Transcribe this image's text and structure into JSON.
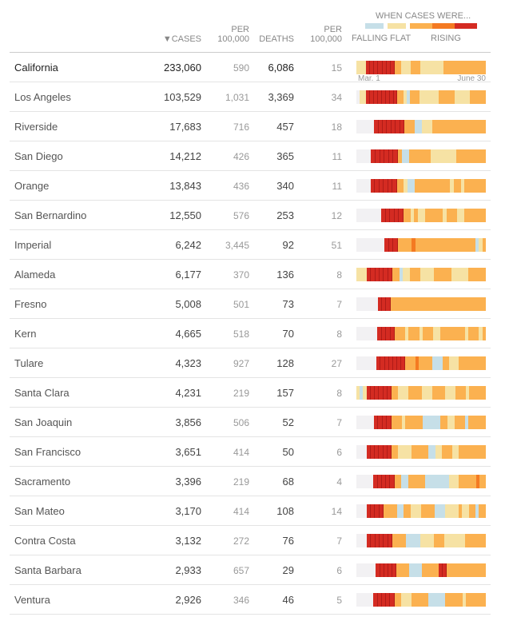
{
  "header": {
    "cases": "▼CASES",
    "per1": "PER",
    "per1b": "100,000",
    "deaths": "DEATHS",
    "per2": "PER",
    "per2b": "100,000",
    "legend_title": "WHEN CASES WERE...",
    "falling": "FALLING",
    "flat": "FLAT",
    "rising": "RISING"
  },
  "axis": {
    "start": "Mar. 1",
    "end": "June 30"
  },
  "colors": {
    "g": "#f2f1f3",
    "b": "#c6dfe8",
    "y": "#f6e2a4",
    "o": "#fbb150",
    "d": "#f47a22",
    "r": "#d42b22"
  },
  "rows": [
    {
      "name": "California",
      "cases": "233,060",
      "per_cases": "590",
      "deaths": "6,086",
      "per_deaths": "15",
      "trend": "yyyrrrrrrrooyyyoooyyyyyyyooooooooooooo"
    },
    {
      "name": "Los Angeles",
      "cases": "103,529",
      "per_cases": "1,031",
      "deaths": "3,369",
      "per_deaths": "34",
      "trend": "gyyrrrrrrrrooyboooyyyyyyoooooyyyyyooooo"
    },
    {
      "name": "Riverside",
      "cases": "17,683",
      "per_cases": "716",
      "deaths": "457",
      "per_deaths": "18",
      "trend": "gggggrrrrrrrooobbyyyooooooooooooooo"
    },
    {
      "name": "San Diego",
      "cases": "14,212",
      "per_cases": "426",
      "deaths": "365",
      "per_deaths": "11",
      "trend": "ggggrrrrrrobbooooooyyyyyyyoooooooo"
    },
    {
      "name": "Orange",
      "cases": "13,843",
      "per_cases": "436",
      "deaths": "340",
      "per_deaths": "11",
      "trend": "ggggrrrrrrooybbooooooooooyooyoooooo"
    },
    {
      "name": "San Bernardino",
      "cases": "12,550",
      "per_cases": "576",
      "deaths": "253",
      "per_deaths": "12",
      "trend": "gggggggrrrrrooyoyyoooooyoooyyoooooo"
    },
    {
      "name": "Imperial",
      "cases": "6,242",
      "per_cases": "3,445",
      "deaths": "92",
      "per_deaths": "51",
      "trend": "ggggggggrrroooodooooooooooooooooobyo"
    },
    {
      "name": "Alameda",
      "cases": "6,177",
      "per_cases": "370",
      "deaths": "136",
      "per_deaths": "8",
      "trend": "yyyrrrrrroobyyoooyyyyoooooyyyyyooooo"
    },
    {
      "name": "Fresno",
      "cases": "5,008",
      "per_cases": "501",
      "deaths": "73",
      "per_deaths": "7",
      "trend": "ggggggrrrooooooooooooooooooooooooooo"
    },
    {
      "name": "Kern",
      "cases": "4,665",
      "per_cases": "518",
      "deaths": "70",
      "per_deaths": "8",
      "trend": "ggggggrrrroooyoooyoooyyoooooooyoooyo"
    },
    {
      "name": "Tulare",
      "cases": "4,323",
      "per_cases": "927",
      "deaths": "128",
      "per_deaths": "27",
      "trend": "ggggggrrrrrrrooodoooobbbooyyyoooooooo"
    },
    {
      "name": "Santa Clara",
      "cases": "4,231",
      "per_cases": "219",
      "deaths": "157",
      "per_deaths": "8",
      "trend": "ybyrrrrrrooyyyooooyyyooooyyyoooyooooo"
    },
    {
      "name": "San Joaquin",
      "cases": "3,856",
      "per_cases": "506",
      "deaths": "52",
      "per_deaths": "7",
      "trend": "gggggrrrroooyooooobbbbbooyyooobooooo"
    },
    {
      "name": "San Francisco",
      "cases": "3,651",
      "per_cases": "414",
      "deaths": "50",
      "per_deaths": "6",
      "trend": "gggrrrrrrooyyyyooooobbyyoooyyoooooooo"
    },
    {
      "name": "Sacramento",
      "cases": "3,396",
      "per_cases": "219",
      "deaths": "68",
      "per_deaths": "4",
      "trend": "gggggrrrrroobbooooobbbbbbbyyyooooodoo"
    },
    {
      "name": "San Mateo",
      "cases": "3,170",
      "per_cases": "414",
      "deaths": "108",
      "per_deaths": "14",
      "trend": "gggrrrroooobbooyyyoooobbbyyyyoyyooboo"
    },
    {
      "name": "Contra Costa",
      "cases": "3,132",
      "per_cases": "272",
      "deaths": "76",
      "per_deaths": "7",
      "trend": "gggrrrrrroooobbbbyyyyoooyyyyyyoooooo"
    },
    {
      "name": "Santa Barbara",
      "cases": "2,933",
      "per_cases": "657",
      "deaths": "29",
      "per_deaths": "6",
      "trend": "ggggggrrrrroooobbbbooooorroooooooooooo"
    },
    {
      "name": "Ventura",
      "cases": "2,926",
      "per_cases": "346",
      "deaths": "46",
      "per_deaths": "5",
      "trend": "gggggrrrrrooyyyooooobbbbboooooyoooooo"
    }
  ]
}
